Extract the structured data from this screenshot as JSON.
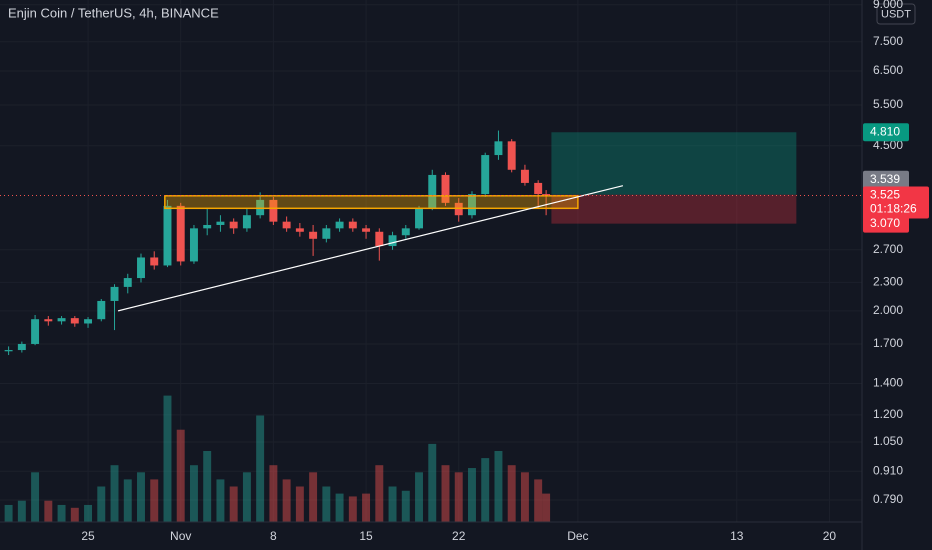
{
  "chart_data": {
    "type": "candlestick",
    "title": "Enjin Coin / TetherUS, 4h, BINANCE",
    "currency": "USDT",
    "up_color": "#26a69a",
    "down_color": "#ef5350",
    "x": [
      19,
      20,
      21,
      22,
      23,
      24,
      25,
      26,
      27,
      28,
      29,
      30,
      31,
      32,
      33,
      34,
      35,
      36,
      37,
      38,
      39,
      40,
      41,
      42,
      43,
      44,
      45,
      46,
      47,
      48,
      49,
      50,
      51,
      52,
      53,
      54,
      55,
      56,
      57,
      58,
      59,
      59.6
    ],
    "open": [
      1.64,
      1.65,
      1.7,
      1.92,
      1.9,
      1.93,
      1.88,
      1.92,
      2.1,
      2.25,
      2.35,
      2.6,
      2.5,
      3.35,
      2.55,
      3.0,
      3.05,
      3.1,
      3.0,
      3.2,
      3.45,
      3.1,
      3.0,
      2.95,
      2.85,
      3.0,
      3.1,
      3.0,
      2.95,
      2.75,
      2.9,
      3.0,
      3.3,
      3.9,
      3.4,
      3.2,
      3.55,
      4.3,
      4.6,
      4.0,
      3.75,
      3.55
    ],
    "high": [
      1.68,
      1.72,
      1.96,
      1.95,
      1.95,
      1.95,
      1.94,
      2.12,
      2.28,
      2.4,
      2.65,
      2.68,
      3.45,
      3.4,
      3.05,
      3.3,
      3.2,
      3.15,
      3.3,
      3.58,
      3.5,
      3.18,
      3.08,
      3.05,
      3.05,
      3.15,
      3.15,
      3.05,
      3.0,
      2.95,
      3.05,
      3.35,
      4.0,
      3.95,
      3.48,
      3.6,
      4.35,
      4.85,
      4.65,
      4.1,
      3.8,
      3.62
    ],
    "low": [
      1.61,
      1.63,
      1.69,
      1.86,
      1.87,
      1.85,
      1.84,
      1.9,
      1.82,
      2.18,
      2.3,
      2.45,
      2.48,
      2.5,
      2.52,
      2.9,
      2.95,
      2.92,
      2.95,
      3.15,
      3.05,
      2.95,
      2.88,
      2.62,
      2.8,
      2.95,
      2.95,
      2.85,
      2.56,
      2.7,
      2.85,
      2.98,
      3.28,
      3.35,
      3.1,
      3.15,
      3.5,
      4.2,
      3.95,
      3.7,
      3.3,
      3.2
    ],
    "close": [
      1.65,
      1.7,
      1.92,
      1.9,
      1.93,
      1.88,
      1.92,
      2.1,
      2.25,
      2.35,
      2.6,
      2.5,
      3.35,
      2.55,
      3.0,
      3.05,
      3.1,
      3.0,
      3.2,
      3.45,
      3.1,
      3.0,
      2.95,
      2.85,
      3.0,
      3.1,
      3.0,
      2.95,
      2.75,
      2.9,
      3.0,
      3.3,
      3.9,
      3.4,
      3.2,
      3.55,
      4.3,
      4.6,
      4.0,
      3.75,
      3.55,
      3.525
    ],
    "volume": [
      12,
      15,
      35,
      15,
      12,
      10,
      12,
      25,
      40,
      30,
      35,
      30,
      89,
      65,
      40,
      50,
      30,
      25,
      35,
      75,
      40,
      30,
      25,
      35,
      25,
      20,
      18,
      20,
      40,
      25,
      22,
      35,
      55,
      40,
      35,
      38,
      45,
      50,
      40,
      35,
      30,
      20
    ],
    "y2lim": [
      0,
      100
    ],
    "xlim": [
      18.35,
      83.46
    ],
    "xticks": [
      {
        "value": 25,
        "label": "25"
      },
      {
        "value": 32,
        "label": "Nov"
      },
      {
        "value": 39,
        "label": "8"
      },
      {
        "value": 46,
        "label": "15"
      },
      {
        "value": 53,
        "label": "22"
      },
      {
        "value": 62,
        "label": "Dec"
      },
      {
        "value": 74,
        "label": "13"
      },
      {
        "value": 81,
        "label": "20"
      }
    ],
    "ylim": [
      0.709,
      9.21
    ],
    "log_scale": true,
    "grid": true,
    "yticks": [
      {
        "value": 9,
        "label": "9.000"
      },
      {
        "value": 7.5,
        "label": "7.500"
      },
      {
        "value": 6.5,
        "label": "6.500"
      },
      {
        "value": 5.5,
        "label": "5.500"
      },
      {
        "value": 4.5,
        "label": "4.500"
      },
      {
        "value": 2.7,
        "label": "2.700"
      },
      {
        "value": 2.3,
        "label": "2.300"
      },
      {
        "value": 2,
        "label": "2.000"
      },
      {
        "value": 1.7,
        "label": "1.700"
      },
      {
        "value": 1.4,
        "label": "1.400"
      },
      {
        "value": 1.2,
        "label": "1.200"
      },
      {
        "value": 1.05,
        "label": "1.050"
      },
      {
        "value": 0.91,
        "label": "0.910"
      },
      {
        "value": 0.79,
        "label": "0.790"
      }
    ],
    "zone": {
      "x": [
        30.8,
        62.0
      ],
      "y": [
        3.31,
        3.52
      ],
      "color": "#f7a600"
    },
    "trendline": {
      "x": [
        27.27,
        65.4
      ],
      "y": [
        2.0,
        3.7
      ],
      "color": "#ffffff"
    },
    "position": {
      "x": [
        60.0,
        78.5
      ],
      "entry": 3.539,
      "target": {
        "value": 4.81,
        "label": "4.810"
      },
      "stop": {
        "value": 3.07,
        "label": "3.070"
      }
    },
    "last_price": 3.525,
    "countdown": "01:18:26"
  }
}
